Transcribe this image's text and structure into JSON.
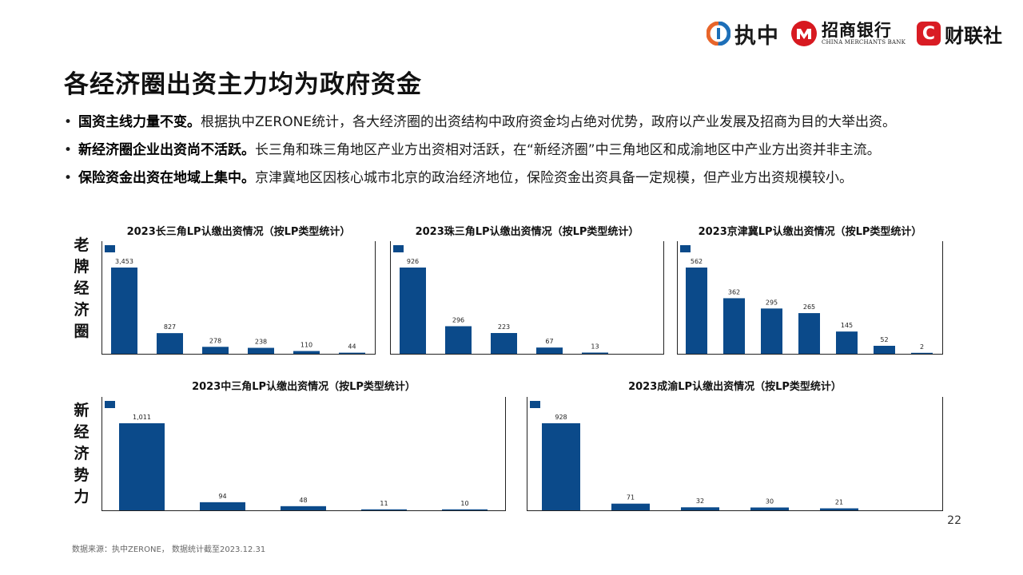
{
  "logos": {
    "zx": "执中",
    "cmb_cn": "招商银行",
    "cmb_en": "CHINA MERCHANTS BANK",
    "cls_mark": "C",
    "cls": "财联社"
  },
  "title": "各经济圈出资主力均为政府资金",
  "bullets": [
    {
      "bold": "国资主线力量不变。",
      "text": "根据执中ZERONE统计，各大经济圈的出资结构中政府资金均占绝对优势，政府以产业发展及招商为目的大举出资。"
    },
    {
      "bold": "新经济圈企业出资尚不活跃。",
      "text": "长三角和珠三角地区产业方出资相对活跃，在“新经济圈”中三角地区和成渝地区中产业方出资并非主流。"
    },
    {
      "bold": "保险资金出资在地域上集中。",
      "text": "京津冀地区因核心城市北京的政治经济地位，保险资金出资具备一定规模，但产业方出资规模较小。"
    }
  ],
  "side_labels": {
    "old": [
      "老",
      "牌",
      "经",
      "济",
      "圈"
    ],
    "new": [
      "新",
      "经",
      "济",
      "势",
      "力"
    ]
  },
  "colors": {
    "bar": "#0b4a8a",
    "axis": "#222222"
  },
  "chart_data": [
    {
      "type": "bar",
      "title": "2023长三角LP认缴出资情况（按LP类型统计）",
      "values": [
        3453,
        827,
        278,
        238,
        110,
        44
      ],
      "labels": [
        "3,453",
        "827",
        "278",
        "238",
        "110",
        "44"
      ]
    },
    {
      "type": "bar",
      "title": "2023珠三角LP认缴出资情况（按LP类型统计）",
      "values": [
        926,
        296,
        223,
        67,
        13
      ],
      "labels": [
        "926",
        "296",
        "223",
        "67",
        "13"
      ]
    },
    {
      "type": "bar",
      "title": "2023京津冀LP认缴出资情况（按LP类型统计）",
      "values": [
        562,
        362,
        295,
        265,
        145,
        52,
        2
      ],
      "labels": [
        "562",
        "362",
        "295",
        "265",
        "145",
        "52",
        "2"
      ]
    },
    {
      "type": "bar",
      "title": "2023中三角LP认缴出资情况（按LP类型统计）",
      "values": [
        1011,
        94,
        48,
        11,
        10
      ],
      "labels": [
        "1,011",
        "94",
        "48",
        "11",
        "10"
      ]
    },
    {
      "type": "bar",
      "title": "2023成渝LP认缴出资情况（按LP类型统计）",
      "values": [
        928,
        71,
        32,
        30,
        21
      ],
      "labels": [
        "928",
        "71",
        "32",
        "30",
        "21"
      ]
    }
  ],
  "page_number": "22",
  "source": "数据来源：执中ZERONE， 数据统计截至2023.12.31"
}
